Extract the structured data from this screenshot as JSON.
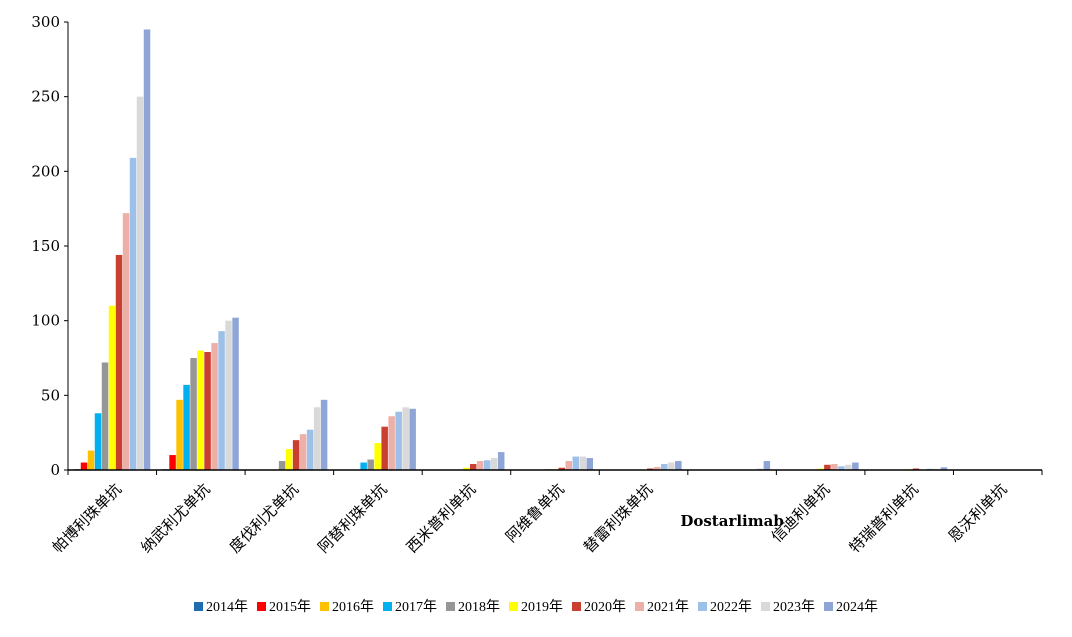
{
  "chart_data": {
    "type": "bar",
    "title": "",
    "xlabel": "",
    "ylabel": "",
    "ylim": [
      0,
      300
    ],
    "yticks": [
      0,
      50,
      100,
      150,
      200,
      250,
      300
    ],
    "legend_position": "bottom",
    "categories": [
      "帕博利珠单抗",
      "纳武利尤单抗",
      "度伐利尤单抗",
      "阿替利珠单抗",
      "西米普利单抗",
      "阿维鲁单抗",
      "替雷利珠单抗",
      "Dostarlimab",
      "信迪利单抗",
      "特瑞普利单抗",
      "恩沃利单抗"
    ],
    "series": [
      {
        "name": "2014年",
        "color": "#1f6cb0",
        "values": [
          0.5,
          0.5,
          0,
          0,
          0,
          0,
          0,
          0,
          0,
          0,
          0
        ]
      },
      {
        "name": "2015年",
        "color": "#ff0000",
        "values": [
          5,
          10,
          0,
          0,
          0,
          0,
          0,
          0,
          0,
          0,
          0
        ]
      },
      {
        "name": "2016年",
        "color": "#ffc000",
        "values": [
          13,
          47,
          0,
          0,
          0,
          0,
          0,
          0,
          0,
          0,
          0
        ]
      },
      {
        "name": "2017年",
        "color": "#00b0f0",
        "values": [
          38,
          57,
          0,
          5,
          0,
          0,
          0,
          0,
          0,
          0,
          0
        ]
      },
      {
        "name": "2018年",
        "color": "#969696",
        "values": [
          72,
          75,
          6,
          7,
          0,
          0.5,
          0,
          0,
          0,
          0,
          0
        ]
      },
      {
        "name": "2019年",
        "color": "#ffff00",
        "values": [
          110,
          80,
          14,
          18,
          1.5,
          0.5,
          0,
          0,
          1,
          0.5,
          0
        ]
      },
      {
        "name": "2020年",
        "color": "#c94030",
        "values": [
          144,
          79,
          20,
          29,
          4,
          1.5,
          1,
          0,
          3.5,
          1,
          0
        ]
      },
      {
        "name": "2021年",
        "color": "#ecb0a8",
        "values": [
          172,
          85,
          24,
          36,
          6,
          6,
          2,
          0,
          4,
          0.3,
          0
        ]
      },
      {
        "name": "2022年",
        "color": "#9dc0e8",
        "values": [
          209,
          93,
          27,
          39,
          6.5,
          9,
          4,
          0,
          2.5,
          0.8,
          0.3
        ]
      },
      {
        "name": "2023年",
        "color": "#d9d9d9",
        "values": [
          250,
          100,
          42,
          42,
          8,
          9,
          5,
          1,
          3.5,
          0.8,
          0.3
        ]
      },
      {
        "name": "2024年",
        "color": "#8fa5d6",
        "values": [
          295,
          102,
          47,
          41,
          12,
          8,
          6,
          6,
          5,
          1.8,
          0.3
        ]
      }
    ]
  }
}
